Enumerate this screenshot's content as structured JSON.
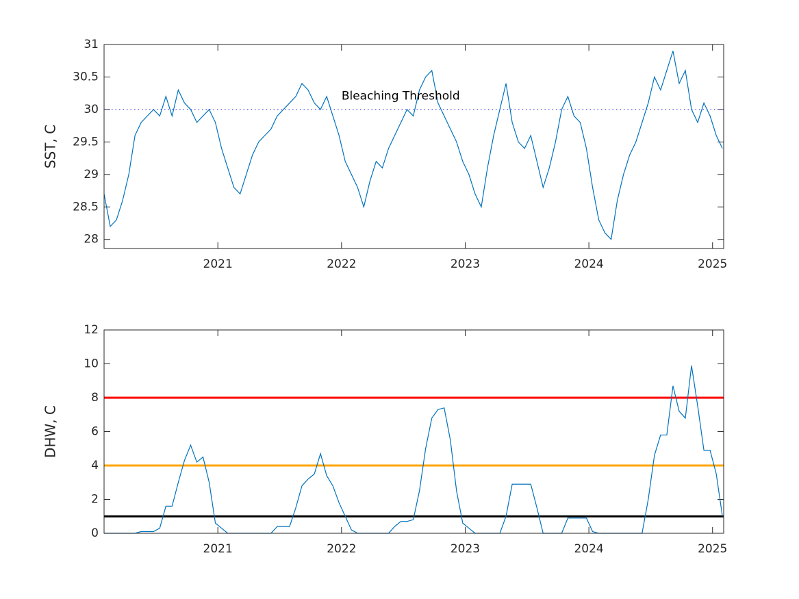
{
  "chart_data": [
    {
      "type": "line",
      "ylabel": "SST, C",
      "color": "#0072bd",
      "x": [
        2020.08,
        2020.13,
        2020.18,
        2020.23,
        2020.28,
        2020.33,
        2020.38,
        2020.43,
        2020.48,
        2020.53,
        2020.58,
        2020.63,
        2020.68,
        2020.73,
        2020.78,
        2020.83,
        2020.88,
        2020.93,
        2020.98,
        2021.03,
        2021.08,
        2021.13,
        2021.18,
        2021.23,
        2021.28,
        2021.33,
        2021.38,
        2021.43,
        2021.48,
        2021.53,
        2021.58,
        2021.63,
        2021.68,
        2021.73,
        2021.78,
        2021.83,
        2021.88,
        2021.93,
        2021.98,
        2022.03,
        2022.08,
        2022.13,
        2022.18,
        2022.23,
        2022.28,
        2022.33,
        2022.38,
        2022.43,
        2022.48,
        2022.53,
        2022.58,
        2022.63,
        2022.68,
        2022.73,
        2022.78,
        2022.83,
        2022.88,
        2022.93,
        2022.98,
        2023.03,
        2023.08,
        2023.13,
        2023.18,
        2023.23,
        2023.28,
        2023.33,
        2023.38,
        2023.43,
        2023.48,
        2023.53,
        2023.58,
        2023.63,
        2023.68,
        2023.73,
        2023.78,
        2023.83,
        2023.88,
        2023.93,
        2023.98,
        2024.03,
        2024.08,
        2024.13,
        2024.18,
        2024.23,
        2024.28,
        2024.33,
        2024.38,
        2024.43,
        2024.48,
        2024.53,
        2024.58,
        2024.63,
        2024.68,
        2024.73,
        2024.78,
        2024.83,
        2024.88,
        2024.93,
        2024.98,
        2025.03,
        2025.08
      ],
      "values": [
        28.7,
        28.2,
        28.3,
        28.6,
        29.0,
        29.6,
        29.8,
        29.9,
        30.0,
        29.9,
        30.2,
        29.9,
        30.3,
        30.1,
        30.0,
        29.8,
        29.9,
        30.0,
        29.8,
        29.4,
        29.1,
        28.8,
        28.7,
        29.0,
        29.3,
        29.5,
        29.6,
        29.7,
        29.9,
        30.0,
        30.1,
        30.2,
        30.4,
        30.3,
        30.1,
        30.0,
        30.2,
        29.9,
        29.6,
        29.2,
        29.0,
        28.8,
        28.5,
        28.9,
        29.2,
        29.1,
        29.4,
        29.6,
        29.8,
        30.0,
        29.9,
        30.3,
        30.5,
        30.6,
        30.1,
        29.9,
        29.7,
        29.5,
        29.2,
        29.0,
        28.7,
        28.5,
        29.1,
        29.6,
        30.0,
        30.4,
        29.8,
        29.5,
        29.4,
        29.6,
        29.2,
        28.8,
        29.1,
        29.5,
        30.0,
        30.2,
        29.9,
        29.8,
        29.4,
        28.8,
        28.3,
        28.1,
        28.0,
        28.6,
        29.0,
        29.3,
        29.5,
        29.8,
        30.1,
        30.5,
        30.3,
        30.6,
        30.9,
        30.4,
        30.6,
        30.0,
        29.8,
        30.1,
        29.9,
        29.6,
        29.4
      ],
      "xlim": [
        2020.08,
        2025.09
      ],
      "xticks": [
        2021,
        2022,
        2023,
        2024,
        2025
      ],
      "ylim": [
        27.86,
        31
      ],
      "yticks": [
        28,
        28.5,
        29,
        29.5,
        30,
        30.5,
        31
      ],
      "hlines": [
        {
          "value": 30,
          "color": "#6666ee",
          "style": "dotted"
        }
      ],
      "annotations": [
        {
          "text": "Bleaching Threshold",
          "x": 2022,
          "y": 30.07
        }
      ]
    },
    {
      "type": "line",
      "ylabel": "DHW, C",
      "color": "#0072bd",
      "x": [
        2020.08,
        2020.13,
        2020.18,
        2020.23,
        2020.28,
        2020.33,
        2020.38,
        2020.43,
        2020.48,
        2020.53,
        2020.58,
        2020.63,
        2020.68,
        2020.73,
        2020.78,
        2020.83,
        2020.88,
        2020.93,
        2020.98,
        2021.03,
        2021.08,
        2021.13,
        2021.18,
        2021.23,
        2021.28,
        2021.33,
        2021.38,
        2021.43,
        2021.48,
        2021.53,
        2021.58,
        2021.63,
        2021.68,
        2021.73,
        2021.78,
        2021.83,
        2021.88,
        2021.93,
        2021.98,
        2022.03,
        2022.08,
        2022.13,
        2022.18,
        2022.23,
        2022.28,
        2022.33,
        2022.38,
        2022.43,
        2022.48,
        2022.53,
        2022.58,
        2022.63,
        2022.68,
        2022.73,
        2022.78,
        2022.83,
        2022.88,
        2022.93,
        2022.98,
        2023.03,
        2023.08,
        2023.13,
        2023.18,
        2023.23,
        2023.28,
        2023.33,
        2023.38,
        2023.43,
        2023.48,
        2023.53,
        2023.58,
        2023.63,
        2023.68,
        2023.73,
        2023.78,
        2023.83,
        2023.88,
        2023.93,
        2023.98,
        2024.03,
        2024.08,
        2024.13,
        2024.18,
        2024.23,
        2024.28,
        2024.33,
        2024.38,
        2024.43,
        2024.48,
        2024.53,
        2024.58,
        2024.63,
        2024.68,
        2024.73,
        2024.78,
        2024.83,
        2024.88,
        2024.93,
        2024.98,
        2025.03,
        2025.08
      ],
      "values": [
        0,
        0,
        0,
        0,
        0,
        0,
        0.1,
        0.1,
        0.1,
        0.3,
        1.6,
        1.6,
        3.0,
        4.3,
        5.2,
        4.2,
        4.5,
        3.0,
        0.6,
        0.3,
        0,
        0,
        0,
        0,
        0,
        0,
        0,
        0,
        0.4,
        0.4,
        0.4,
        1.5,
        2.8,
        3.2,
        3.5,
        4.7,
        3.4,
        2.8,
        1.8,
        1.0,
        0.2,
        0,
        0,
        0,
        0,
        0,
        0,
        0.4,
        0.7,
        0.7,
        0.8,
        2.5,
        5.0,
        6.8,
        7.3,
        7.4,
        5.5,
        2.5,
        0.6,
        0.3,
        0,
        0,
        0,
        0,
        0,
        1.0,
        2.9,
        2.9,
        2.9,
        2.9,
        1.5,
        0,
        0,
        0,
        0,
        0.9,
        0.9,
        0.9,
        0.9,
        0.1,
        0,
        0,
        0,
        0,
        0,
        0,
        0,
        0,
        2.0,
        4.6,
        5.8,
        5.8,
        8.7,
        7.2,
        6.8,
        9.9,
        7.5,
        4.9,
        4.9,
        3.5,
        1.0
      ],
      "xlim": [
        2020.08,
        2025.09
      ],
      "xticks": [
        2021,
        2022,
        2023,
        2024,
        2025
      ],
      "ylim": [
        0,
        12
      ],
      "yticks": [
        0,
        2,
        4,
        6,
        8,
        10,
        12
      ],
      "hlines": [
        {
          "value": 8,
          "color": "#ff0000",
          "style": "solid"
        },
        {
          "value": 4,
          "color": "#ffa500",
          "style": "solid"
        },
        {
          "value": 1,
          "color": "#000000",
          "style": "solid"
        }
      ]
    }
  ]
}
